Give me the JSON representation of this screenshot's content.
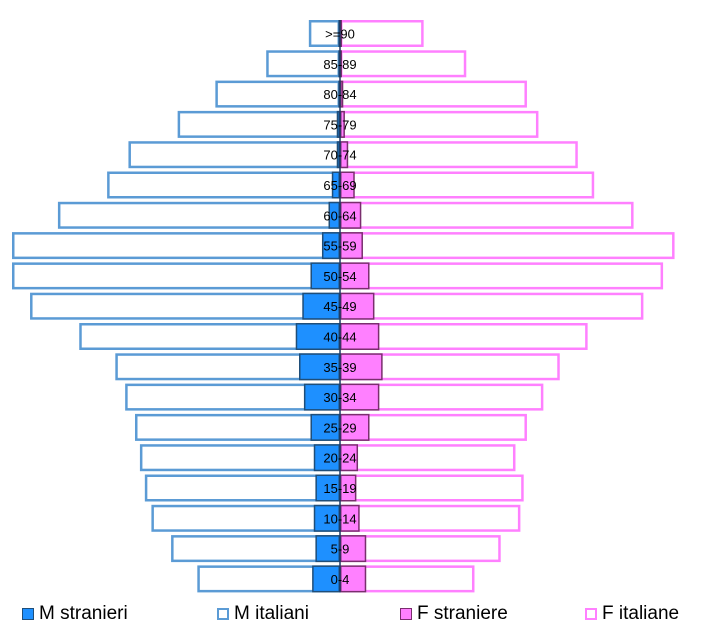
{
  "chart_data": {
    "type": "bar",
    "orientation": "horizontal-pyramid",
    "categories": [
      ">=90",
      "85-89",
      "80-84",
      "75-79",
      "70-74",
      "65-69",
      "60-64",
      "55-59",
      "50-54",
      "45-49",
      "40-44",
      "35-39",
      "30-34",
      "25-29",
      "20-24",
      "15-19",
      "10-14",
      "5-9",
      "0-4"
    ],
    "series": [
      {
        "name": "M stranieri",
        "side": "left",
        "color": "#1e90ff",
        "values": [
          1,
          1,
          1,
          2,
          2,
          5,
          7,
          11,
          18,
          23,
          27,
          25,
          22,
          18,
          16,
          15,
          16,
          15,
          17
        ]
      },
      {
        "name": "M italiani",
        "side": "left",
        "color": "#ffffff",
        "border": "#5b9bd5",
        "values": [
          19,
          45,
          76,
          99,
          129,
          142,
          172,
          200,
          200,
          189,
          159,
          137,
          131,
          125,
          122,
          119,
          115,
          103,
          87
        ]
      },
      {
        "name": "F straniere",
        "side": "right",
        "color": "#ff80ff",
        "border": "#7a2e6e",
        "values": [
          1,
          1,
          2,
          3,
          5,
          9,
          13,
          14,
          18,
          21,
          24,
          26,
          24,
          18,
          11,
          10,
          12,
          16,
          16
        ]
      },
      {
        "name": "F italiane",
        "side": "right",
        "color": "#ffffff",
        "border": "#ff80ff",
        "values": [
          51,
          77,
          114,
          121,
          145,
          155,
          179,
          204,
          197,
          185,
          151,
          134,
          124,
          114,
          107,
          112,
          110,
          98,
          82
        ]
      }
    ],
    "grid": false,
    "legend_placement": "bottom"
  }
}
